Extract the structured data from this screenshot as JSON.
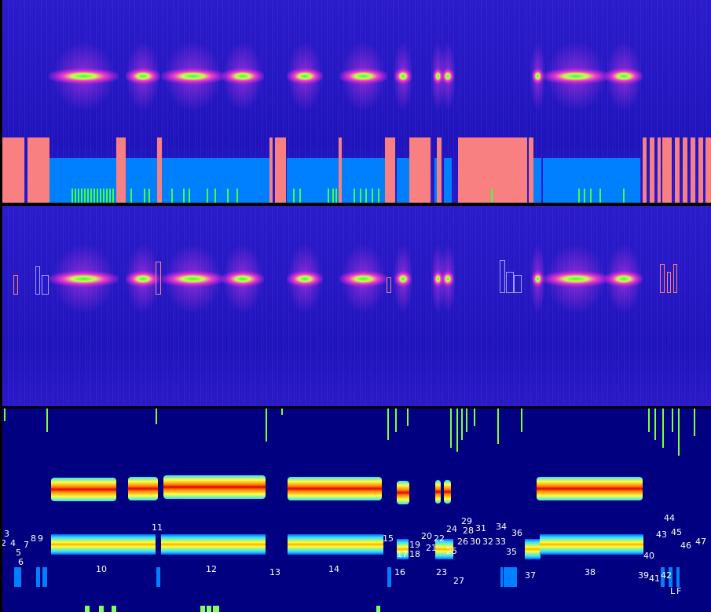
{
  "colors": {
    "background": "#000000",
    "spectrogram_base": "#2418c0",
    "salmon_segment": "#f88080",
    "blue_segment": "#0080ff",
    "green_marker": "#40ff40",
    "feature_panel_bg": "#000080",
    "label_text": "#ffffff"
  },
  "panels": [
    {
      "name": "spectrogram-with-segmentation"
    },
    {
      "name": "spectrogram-with-detections"
    },
    {
      "name": "feature-tracks"
    }
  ],
  "segment_labels": [
    "2",
    "3",
    "4",
    "5",
    "6",
    "7",
    "8",
    "9",
    "10",
    "11",
    "12",
    "13",
    "14",
    "15",
    "16",
    "17",
    "18",
    "19",
    "20",
    "21",
    "22",
    "23",
    "24",
    "25",
    "26",
    "27",
    "28",
    "29",
    "30",
    "31",
    "32",
    "33",
    "34",
    "35",
    "36",
    "37",
    "38",
    "39",
    "40",
    "41",
    "42",
    "43",
    "44",
    "45",
    "46",
    "47",
    "L",
    "F"
  ]
}
